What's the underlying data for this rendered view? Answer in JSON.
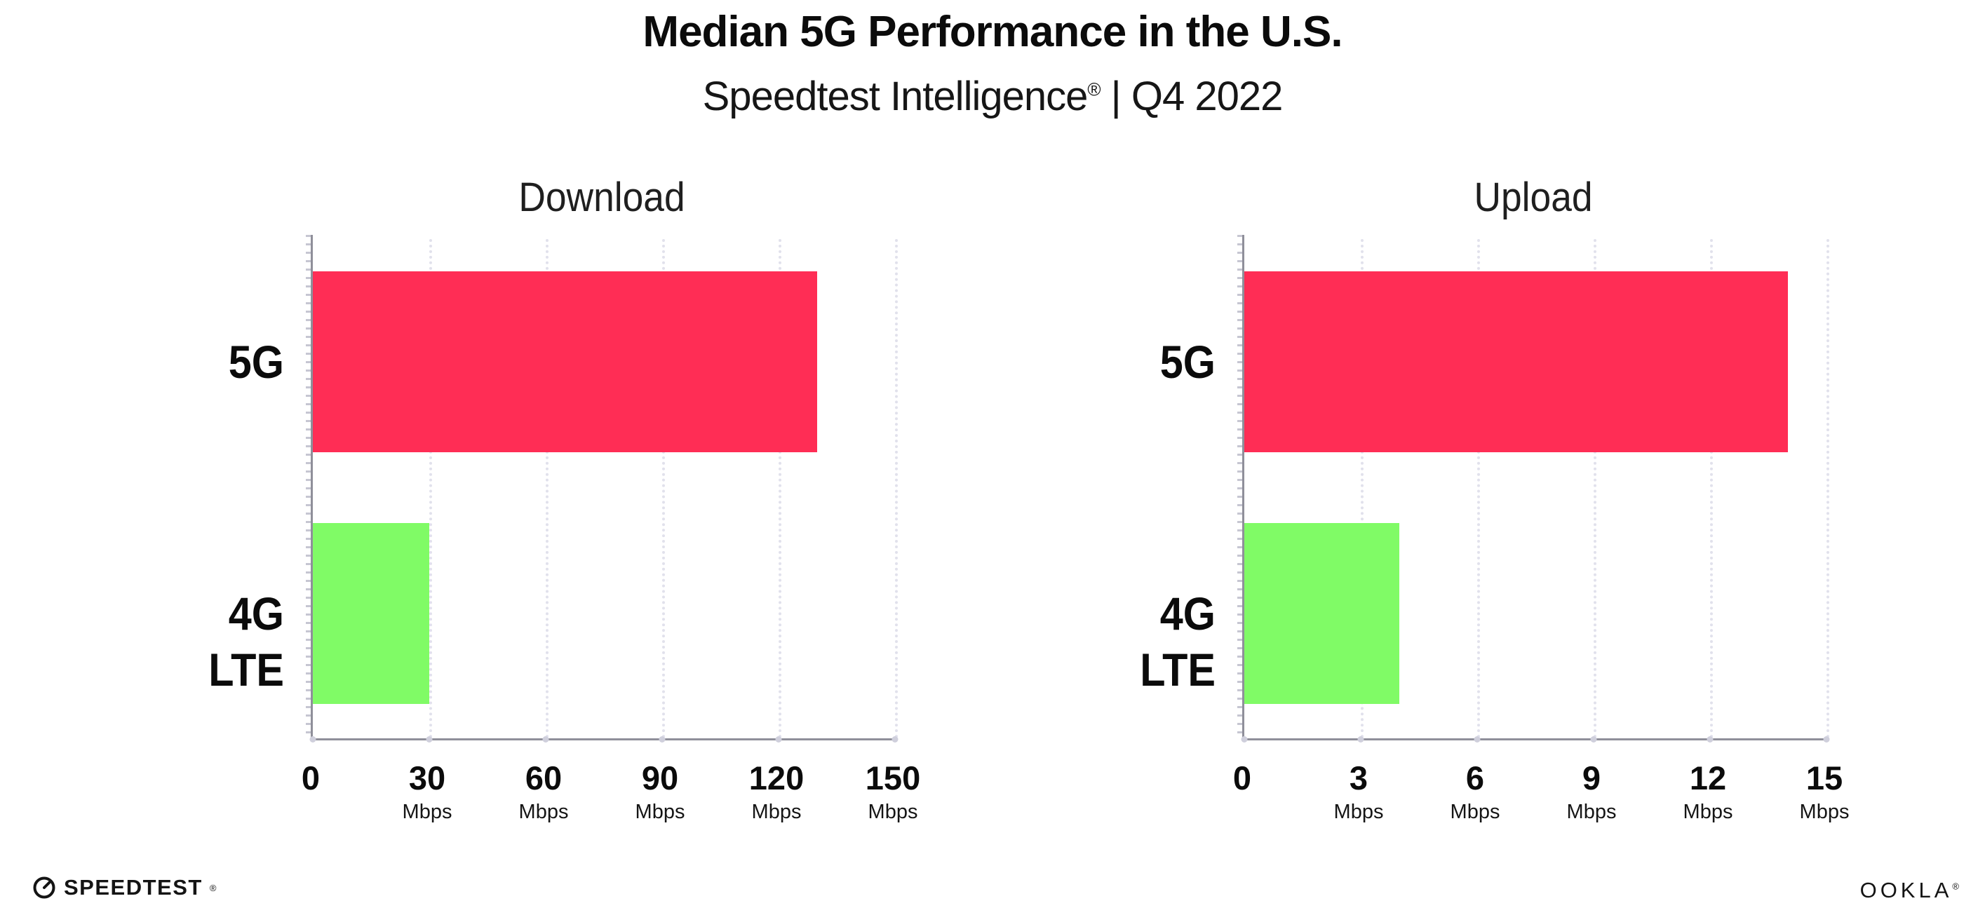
{
  "header": {
    "title": "Median 5G Performance in the U.S.",
    "subtitle_brand": "Speedtest Intelligence",
    "subtitle_reg": "®",
    "subtitle_rest": " | Q4 2022"
  },
  "chart_data": [
    {
      "type": "bar",
      "orientation": "horizontal",
      "title": "Download",
      "categories": [
        "5G",
        "4G LTE"
      ],
      "values": [
        130,
        30
      ],
      "unit": "Mbps",
      "xlabel": "",
      "ylabel": "",
      "xlim": [
        0,
        150
      ],
      "xticks": [
        0,
        30,
        60,
        90,
        120,
        150
      ],
      "bar_colors": [
        "#FF2D55",
        "#80FB66"
      ],
      "grid": "dotted-vertical",
      "legend": "none"
    },
    {
      "type": "bar",
      "orientation": "horizontal",
      "title": "Upload",
      "categories": [
        "5G",
        "4G LTE"
      ],
      "values": [
        14,
        4
      ],
      "unit": "Mbps",
      "xlabel": "",
      "ylabel": "",
      "xlim": [
        0,
        15
      ],
      "xticks": [
        0,
        3,
        6,
        9,
        12,
        15
      ],
      "bar_colors": [
        "#FF2D55",
        "#80FB66"
      ],
      "grid": "dotted-vertical",
      "legend": "none"
    }
  ],
  "footer": {
    "speedtest_label": "SPEEDTEST",
    "speedtest_mark": "®",
    "speedtest_icon": "gauge-icon",
    "ookla_label": "OOKLA",
    "ookla_mark": "®"
  },
  "colors": {
    "bar_5g": "#FF2D55",
    "bar_4g_lte": "#80FB66",
    "axis": "#8f8f9a",
    "gridline": "#e1e1ec",
    "text": "#0b0b0b"
  }
}
